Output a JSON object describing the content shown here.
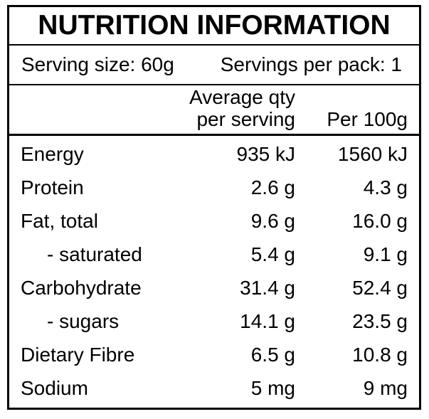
{
  "title": "NUTRITION INFORMATION",
  "serving": {
    "serving_size": "Serving size: 60g",
    "servings_per_pack": "Servings per pack: 1"
  },
  "columns": {
    "per_serving_line1": "Average qty",
    "per_serving_line2": "per serving",
    "per_100g": "Per 100g"
  },
  "rows": [
    {
      "nutrient": "Energy",
      "per_serving": "935 kJ",
      "per_100g": "1560 kJ",
      "indent": false
    },
    {
      "nutrient": "Protein",
      "per_serving": "2.6 g",
      "per_100g": "4.3 g",
      "indent": false
    },
    {
      "nutrient": "Fat, total",
      "per_serving": "9.6 g",
      "per_100g": "16.0 g",
      "indent": false
    },
    {
      "nutrient": "- saturated",
      "per_serving": "5.4 g",
      "per_100g": "9.1 g",
      "indent": true
    },
    {
      "nutrient": "Carbohydrate",
      "per_serving": "31.4 g",
      "per_100g": "52.4 g",
      "indent": false
    },
    {
      "nutrient": "- sugars",
      "per_serving": "14.1 g",
      "per_100g": "23.5 g",
      "indent": true
    },
    {
      "nutrient": "Dietary Fibre",
      "per_serving": "6.5 g",
      "per_100g": "10.8 g",
      "indent": false
    },
    {
      "nutrient": "Sodium",
      "per_serving": "5 mg",
      "per_100g": "9 mg",
      "indent": false
    }
  ],
  "colors": {
    "border": "#000000",
    "text": "#000000",
    "background": "#ffffff"
  }
}
